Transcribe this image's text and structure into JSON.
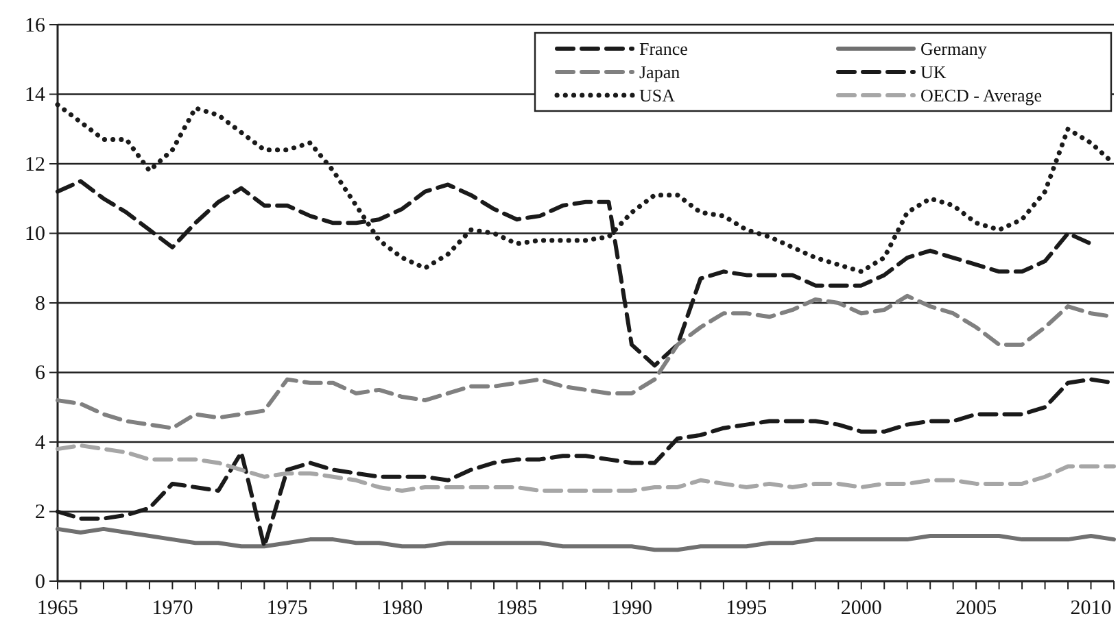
{
  "chart_data": {
    "type": "line",
    "x": [
      1965,
      1966,
      1967,
      1968,
      1969,
      1970,
      1971,
      1972,
      1973,
      1974,
      1975,
      1976,
      1977,
      1978,
      1979,
      1980,
      1981,
      1982,
      1983,
      1984,
      1985,
      1986,
      1987,
      1988,
      1989,
      1990,
      1991,
      1992,
      1993,
      1994,
      1995,
      1996,
      1997,
      1998,
      1999,
      2000,
      2001,
      2002,
      2003,
      2004,
      2005,
      2006,
      2007,
      2008,
      2009,
      2010,
      2011
    ],
    "series": [
      {
        "name": "France",
        "color": "#1a1a1a",
        "line_style": "dashed",
        "values": [
          11.2,
          11.5,
          11.0,
          10.6,
          10.1,
          9.6,
          10.3,
          10.9,
          11.3,
          10.8,
          10.8,
          10.5,
          10.3,
          10.3,
          10.4,
          10.7,
          11.2,
          11.4,
          11.1,
          10.7,
          10.4,
          10.5,
          10.8,
          10.9,
          10.9,
          6.8,
          6.2,
          6.8,
          8.7,
          8.9,
          8.8,
          8.8,
          8.8,
          8.5,
          8.5,
          8.5,
          8.8,
          9.3,
          9.5,
          9.3,
          9.1,
          8.9,
          8.9,
          9.2,
          10.0,
          9.7,
          null
        ]
      },
      {
        "name": "Germany",
        "color": "#707070",
        "line_style": "solid",
        "values": [
          1.5,
          1.4,
          1.5,
          1.4,
          1.3,
          1.2,
          1.1,
          1.1,
          1.0,
          1.0,
          1.1,
          1.2,
          1.2,
          1.1,
          1.1,
          1.0,
          1.0,
          1.1,
          1.1,
          1.1,
          1.1,
          1.1,
          1.0,
          1.0,
          1.0,
          1.0,
          0.9,
          0.9,
          1.0,
          1.0,
          1.0,
          1.1,
          1.1,
          1.2,
          1.2,
          1.2,
          1.2,
          1.2,
          1.3,
          1.3,
          1.3,
          1.3,
          1.2,
          1.2,
          1.2,
          1.3,
          1.2
        ]
      },
      {
        "name": "Japan",
        "color": "#808080",
        "line_style": "dashed",
        "values": [
          5.2,
          5.1,
          4.8,
          4.6,
          4.5,
          4.4,
          4.8,
          4.7,
          4.8,
          4.9,
          5.8,
          5.7,
          5.7,
          5.4,
          5.5,
          5.3,
          5.2,
          5.4,
          5.6,
          5.6,
          5.7,
          5.8,
          5.6,
          5.5,
          5.4,
          5.4,
          5.8,
          6.8,
          7.3,
          7.7,
          7.7,
          7.6,
          7.8,
          8.1,
          8.0,
          7.7,
          7.8,
          8.2,
          7.9,
          7.7,
          7.3,
          6.8,
          6.8,
          7.3,
          7.9,
          7.7,
          7.6
        ]
      },
      {
        "name": "UK",
        "color": "#1a1a1a",
        "line_style": "dashed",
        "values": [
          2.0,
          1.8,
          1.8,
          1.9,
          2.1,
          2.8,
          2.7,
          2.6,
          3.7,
          1.0,
          3.2,
          3.4,
          3.2,
          3.1,
          3.0,
          3.0,
          3.0,
          2.9,
          3.2,
          3.4,
          3.5,
          3.5,
          3.6,
          3.6,
          3.5,
          3.4,
          3.4,
          4.1,
          4.2,
          4.4,
          4.5,
          4.6,
          4.6,
          4.6,
          4.5,
          4.3,
          4.3,
          4.5,
          4.6,
          4.6,
          4.8,
          4.8,
          4.8,
          5.0,
          5.7,
          5.8,
          5.7
        ]
      },
      {
        "name": "USA",
        "color": "#1a1a1a",
        "line_style": "dotted",
        "values": [
          13.7,
          13.2,
          12.7,
          12.7,
          11.8,
          12.4,
          13.6,
          13.4,
          12.9,
          12.4,
          12.4,
          12.6,
          11.8,
          10.8,
          9.8,
          9.3,
          9.0,
          9.4,
          10.1,
          10.0,
          9.7,
          9.8,
          9.8,
          9.8,
          9.9,
          10.6,
          11.1,
          11.1,
          10.6,
          10.5,
          10.1,
          9.9,
          9.6,
          9.3,
          9.1,
          8.9,
          9.3,
          10.6,
          11.0,
          10.8,
          10.3,
          10.1,
          10.4,
          11.2,
          13.0,
          12.6,
          12.0
        ]
      },
      {
        "name": "OECD - Average",
        "color": "#a6a6a6",
        "line_style": "dashed",
        "values": [
          3.8,
          3.9,
          3.8,
          3.7,
          3.5,
          3.5,
          3.5,
          3.4,
          3.2,
          3.0,
          3.1,
          3.1,
          3.0,
          2.9,
          2.7,
          2.6,
          2.7,
          2.7,
          2.7,
          2.7,
          2.7,
          2.6,
          2.6,
          2.6,
          2.6,
          2.6,
          2.7,
          2.7,
          2.9,
          2.8,
          2.7,
          2.8,
          2.7,
          2.8,
          2.8,
          2.7,
          2.8,
          2.8,
          2.9,
          2.9,
          2.8,
          2.8,
          2.8,
          3.0,
          3.3,
          3.3,
          3.3
        ]
      }
    ],
    "xlim": [
      1965,
      2011
    ],
    "xticks": [
      1965,
      {
        "value": 1966,
        "label": null
      },
      {
        "value": 1967,
        "label": null
      },
      {
        "value": 1968,
        "label": null
      },
      {
        "value": 1969,
        "label": null
      },
      1970,
      {
        "value": 1971,
        "label": null
      },
      {
        "value": 1972,
        "label": null
      },
      {
        "value": 1973,
        "label": null
      },
      {
        "value": 1974,
        "label": null
      },
      1975,
      {
        "value": 1976,
        "label": null
      },
      {
        "value": 1977,
        "label": null
      },
      {
        "value": 1978,
        "label": null
      },
      {
        "value": 1979,
        "label": null
      },
      1980,
      {
        "value": 1981,
        "label": null
      },
      {
        "value": 1982,
        "label": null
      },
      {
        "value": 1983,
        "label": null
      },
      {
        "value": 1984,
        "label": null
      },
      1985,
      {
        "value": 1986,
        "label": null
      },
      {
        "value": 1987,
        "label": null
      },
      {
        "value": 1988,
        "label": null
      },
      {
        "value": 1989,
        "label": null
      },
      1990,
      {
        "value": 1991,
        "label": null
      },
      {
        "value": 1992,
        "label": null
      },
      {
        "value": 1993,
        "label": null
      },
      {
        "value": 1994,
        "label": null
      },
      1995,
      {
        "value": 1996,
        "label": null
      },
      {
        "value": 1997,
        "label": null
      },
      {
        "value": 1998,
        "label": null
      },
      {
        "value": 1999,
        "label": null
      },
      2000,
      {
        "value": 2001,
        "label": null
      },
      {
        "value": 2002,
        "label": null
      },
      {
        "value": 2003,
        "label": null
      },
      {
        "value": 2004,
        "label": null
      },
      2005,
      {
        "value": 2006,
        "label": null
      },
      {
        "value": 2007,
        "label": null
      },
      {
        "value": 2008,
        "label": null
      },
      {
        "value": 2009,
        "label": null
      },
      2010,
      {
        "value": 2011,
        "label": null
      }
    ],
    "ylim": [
      0,
      16
    ],
    "yticks": [
      0,
      2,
      4,
      6,
      8,
      10,
      12,
      14,
      16
    ],
    "grid": "y",
    "legend": "top right"
  }
}
